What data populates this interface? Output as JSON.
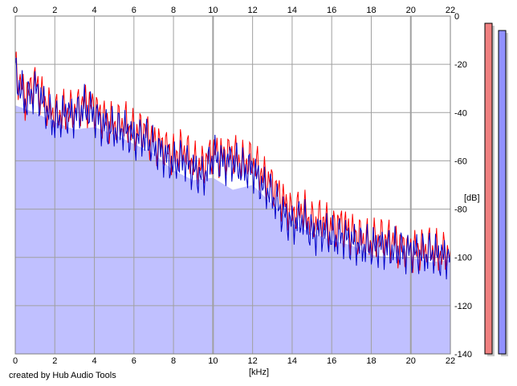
{
  "chart_data": {
    "type": "area",
    "title": "",
    "xlabel": "[kHz]",
    "ylabel": "[dB]",
    "x_ticks": [
      "0",
      "2",
      "4",
      "6",
      "8",
      "10",
      "12",
      "14",
      "16",
      "18",
      "20",
      "22"
    ],
    "y_ticks": [
      "0",
      "-20",
      "-40",
      "-60",
      "-80",
      "-100",
      "-120",
      "-140"
    ],
    "xlim": [
      0,
      22
    ],
    "ylim": [
      -140,
      0
    ],
    "grid": true,
    "series": [
      {
        "color": "#ff0000",
        "x": [
          0,
          0.5,
          1,
          1.5,
          2,
          2.5,
          3,
          3.5,
          4,
          4.5,
          5,
          5.5,
          6,
          6.5,
          7,
          7.5,
          8,
          8.5,
          9,
          9.5,
          10,
          10.5,
          11,
          11.5,
          12,
          12.5,
          13,
          13.5,
          14,
          14.5,
          15,
          15.5,
          16,
          16.5,
          17,
          17.5,
          18,
          18.5,
          19,
          19.5,
          20,
          20.5,
          21,
          21.5,
          22
        ],
        "values": [
          -22,
          -34,
          -27,
          -36,
          -41,
          -40,
          -39,
          -36,
          -38,
          -43,
          -45,
          -44,
          -48,
          -47,
          -52,
          -54,
          -58,
          -55,
          -61,
          -62,
          -56,
          -58,
          -57,
          -61,
          -60,
          -66,
          -70,
          -76,
          -82,
          -80,
          -86,
          -84,
          -88,
          -86,
          -90,
          -92,
          -94,
          -92,
          -93,
          -96,
          -97,
          -97,
          -96,
          -99,
          -97
        ]
      },
      {
        "color": "#0000c8",
        "x": [
          0,
          0.5,
          1,
          1.5,
          2,
          2.5,
          3,
          3.5,
          4,
          4.5,
          5,
          5.5,
          6,
          6.5,
          7,
          7.5,
          8,
          8.5,
          9,
          9.5,
          10,
          10.5,
          11,
          11.5,
          12,
          12.5,
          13,
          13.5,
          14,
          14.5,
          15,
          15.5,
          16,
          16.5,
          17,
          17.5,
          18,
          18.5,
          19,
          19.5,
          20,
          20.5,
          21,
          21.5,
          22
        ],
        "values": [
          -24,
          -36,
          -30,
          -38,
          -44,
          -41,
          -41,
          -38,
          -41,
          -46,
          -47,
          -47,
          -51,
          -50,
          -55,
          -57,
          -62,
          -59,
          -64,
          -67,
          -58,
          -61,
          -60,
          -64,
          -63,
          -71,
          -74,
          -82,
          -86,
          -84,
          -90,
          -89,
          -92,
          -91,
          -94,
          -95,
          -96,
          -95,
          -97,
          -97,
          -98,
          -99,
          -98,
          -100,
          -99
        ]
      }
    ],
    "fill": {
      "color": "#c0c0ff",
      "x": [
        0,
        1,
        2,
        3,
        4,
        5,
        6,
        7,
        8,
        9,
        10,
        11,
        12,
        13,
        14,
        15,
        16,
        17,
        18,
        19,
        20,
        21,
        22
      ],
      "values": [
        -37,
        -40,
        -44,
        -47,
        -46,
        -49,
        -53,
        -57,
        -64,
        -68,
        -67,
        -72,
        -70,
        -78,
        -86,
        -90,
        -93,
        -95,
        -99,
        -100,
        -100,
        -102,
        -101
      ]
    },
    "level_meters": [
      {
        "color": "#f08080",
        "level_db": -3
      },
      {
        "color": "#9090ff",
        "level_db": -6
      }
    ]
  },
  "footer": {
    "credit": "created by Hub Audio Tools"
  }
}
